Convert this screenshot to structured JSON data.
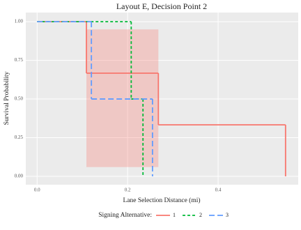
{
  "chart_data": {
    "type": "step",
    "title": "Layout E, Decision Point 2",
    "x_label": "Lane Selection Distance (mi)",
    "y_label": "Survival Probability",
    "legend_title": "Signing Alternative:",
    "legend_position": "bottom",
    "grid": true,
    "xlim": [
      -0.025,
      0.577
    ],
    "ylim": [
      -0.054,
      1.059
    ],
    "xticks": [
      {
        "value": 0,
        "label": "0.0"
      },
      {
        "value": 0.2,
        "label": "0.2"
      },
      {
        "value": 0.4,
        "label": "0.4"
      }
    ],
    "yticks": [
      {
        "value": 0,
        "label": "0.00"
      },
      {
        "value": 0.25,
        "label": "0.25"
      },
      {
        "value": 0.5,
        "label": "0.50"
      },
      {
        "value": 0.75,
        "label": "0.75"
      },
      {
        "value": 1,
        "label": "1.00"
      }
    ],
    "series": [
      {
        "name": "1",
        "color": "#F8766D",
        "dash": "none",
        "x": [
          0,
          0.109,
          0.268,
          0.549
        ],
        "values": [
          1,
          0.667,
          0.333,
          0
        ]
      },
      {
        "name": "2",
        "color": "#00BA38",
        "dash": "4 3",
        "x": [
          0,
          0.208,
          0.234
        ],
        "values": [
          1,
          0.5,
          0
        ]
      },
      {
        "name": "3",
        "color": "#619CFF",
        "dash": "8 4",
        "x": [
          0,
          0.12,
          0.255
        ],
        "values": [
          1,
          0.5,
          0
        ]
      }
    ],
    "confidence_band": {
      "color": "#F8766D",
      "x": [
        0.109,
        0.268
      ],
      "lower": 0.06,
      "upper": 0.95
    }
  }
}
